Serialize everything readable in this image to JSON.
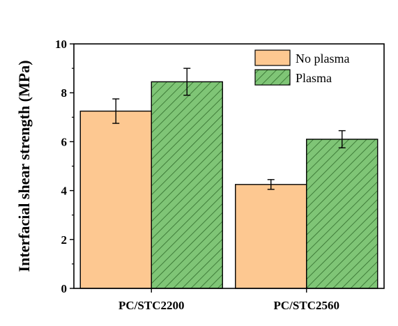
{
  "chart_data": {
    "type": "bar",
    "title": "",
    "xlabel": "",
    "ylabel": "Interfacial shear strength (MPa)",
    "categories": [
      "PC/STC2200",
      "PC/STC2560"
    ],
    "series": [
      {
        "name": "No plasma",
        "values": [
          7.25,
          4.25
        ],
        "errors": [
          0.5,
          0.2
        ],
        "color": "#FDC891",
        "pattern": "solid"
      },
      {
        "name": "Plasma",
        "values": [
          8.45,
          6.1
        ],
        "errors": [
          0.55,
          0.35
        ],
        "color": "#7FC576",
        "pattern": "diagonal-hatch"
      }
    ],
    "ylim": [
      0,
      10
    ],
    "yticks": [
      0,
      2,
      4,
      6,
      8,
      10
    ],
    "legend_position": "top-right",
    "grid": false
  }
}
